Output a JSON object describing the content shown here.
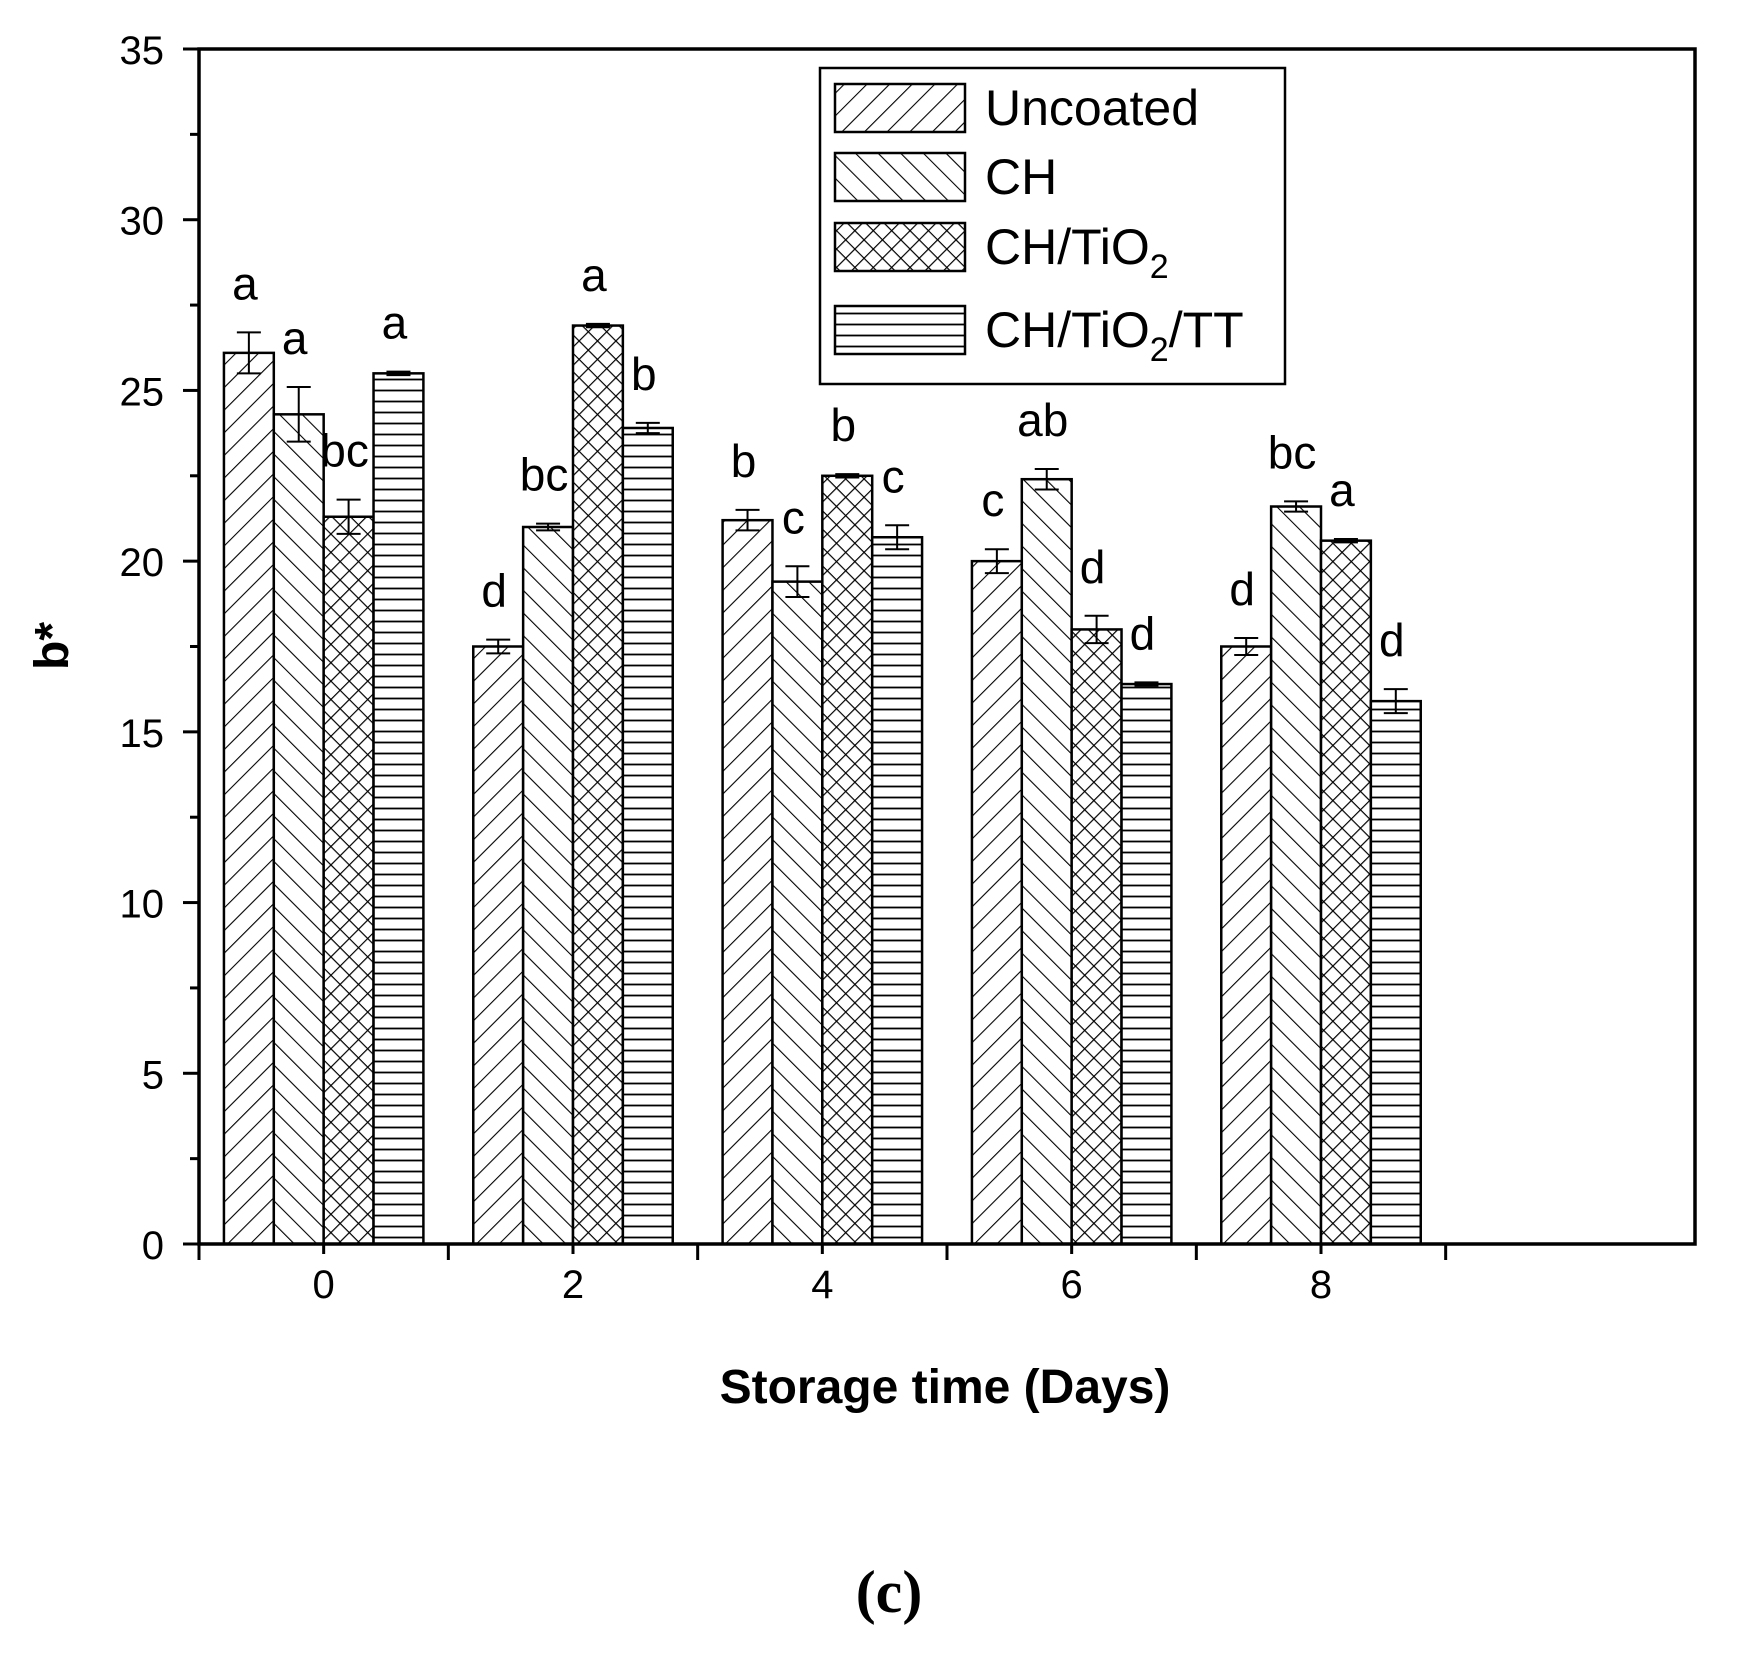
{
  "chart_data": {
    "type": "bar",
    "ylabel": "b*",
    "xlabel": "Storage time (Days)",
    "categories": [
      "0",
      "2",
      "4",
      "6",
      "8"
    ],
    "ylim": [
      0,
      35
    ],
    "yticks": [
      "0",
      "5",
      "10",
      "15",
      "20",
      "25",
      "30",
      "35"
    ],
    "legend_position": "top-right",
    "series": [
      {
        "name": "Uncoated",
        "legend_main": "Uncoated",
        "legend_sub": "",
        "legend_tail": "",
        "pattern": "diag-forward",
        "values": [
          26.1,
          17.5,
          21.2,
          20.0,
          17.5
        ],
        "errors": [
          0.6,
          0.2,
          0.3,
          0.35,
          0.25
        ],
        "labels": [
          "a",
          "d",
          "b",
          "c",
          "d"
        ]
      },
      {
        "name": "CH",
        "legend_main": "CH",
        "legend_sub": "",
        "legend_tail": "",
        "pattern": "diag-back",
        "values": [
          24.3,
          21.0,
          19.4,
          22.4,
          21.6
        ],
        "errors": [
          0.8,
          0.1,
          0.45,
          0.3,
          0.15
        ],
        "labels": [
          "a",
          "bc",
          "c",
          "ab",
          "bc"
        ]
      },
      {
        "name": "CH/TiO2",
        "legend_main": "CH/TiO",
        "legend_sub": "2",
        "legend_tail": "",
        "pattern": "crosshatch",
        "values": [
          21.3,
          26.9,
          22.5,
          18.0,
          20.6
        ],
        "errors": [
          0.5,
          0.05,
          0.05,
          0.4,
          0.05
        ],
        "labels": [
          "bc",
          "a",
          "b",
          "d",
          "a"
        ]
      },
      {
        "name": "CH/TiO2/TT",
        "legend_main": "CH/TiO",
        "legend_sub": "2",
        "legend_tail": "/TT",
        "pattern": "horizontal",
        "values": [
          25.5,
          23.9,
          20.7,
          16.4,
          15.9
        ],
        "errors": [
          0.05,
          0.15,
          0.35,
          0.05,
          0.35
        ],
        "labels": [
          "a",
          "b",
          "c",
          "d",
          "d"
        ]
      }
    ]
  },
  "caption": "(c)"
}
